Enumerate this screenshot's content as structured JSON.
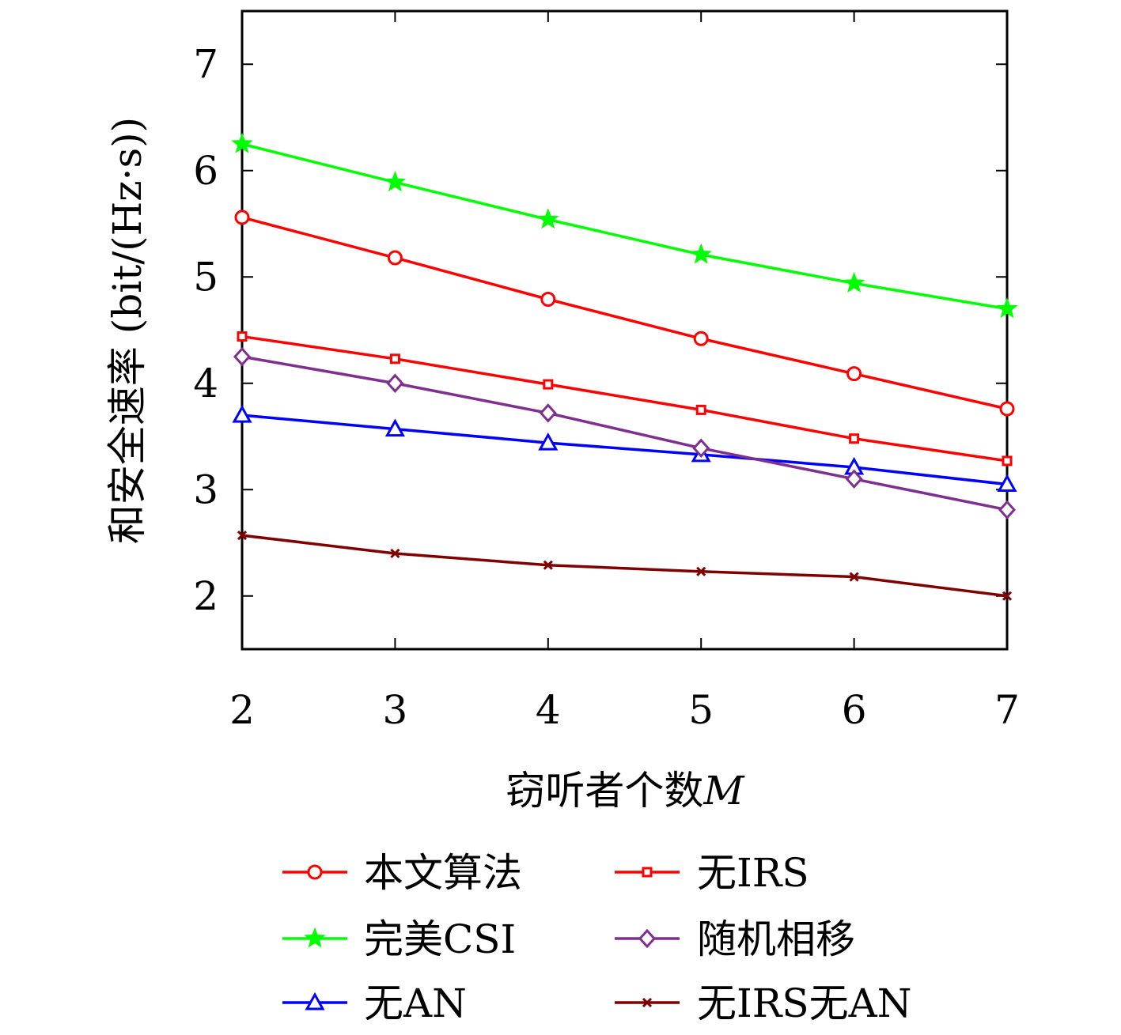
{
  "chart_data": {
    "type": "line",
    "xlabel": "窃听者个数",
    "xlabel_var": "M",
    "ylabel": "和安全速率 (bit/(Hz·s))",
    "x": [
      2,
      3,
      4,
      5,
      6,
      7
    ],
    "xlim": [
      2,
      7
    ],
    "ylim": [
      1.5,
      7.5
    ],
    "xticks": [
      "2",
      "3",
      "4",
      "5",
      "6",
      "7"
    ],
    "yticks": [
      "2",
      "3",
      "4",
      "5",
      "6",
      "7"
    ],
    "grid": false,
    "legend_position": "bottom",
    "series": [
      {
        "name": "本文算法",
        "color": "#ff0000",
        "marker": "circle",
        "values": [
          5.56,
          5.18,
          4.79,
          4.42,
          4.09,
          3.76
        ]
      },
      {
        "name": "完美CSI",
        "color": "#00ff00",
        "marker": "star",
        "values": [
          6.25,
          5.89,
          5.54,
          5.21,
          4.94,
          4.7
        ]
      },
      {
        "name": "无AN",
        "color": "#0000ff",
        "marker": "triangle",
        "values": [
          3.7,
          3.57,
          3.44,
          3.33,
          3.21,
          3.05
        ]
      },
      {
        "name": "无IRS",
        "color": "#ff0000",
        "marker": "square",
        "values": [
          4.44,
          4.23,
          3.99,
          3.75,
          3.48,
          3.27
        ]
      },
      {
        "name": "随机相移",
        "color": "#7f2f8f",
        "marker": "diamond",
        "values": [
          4.25,
          4.0,
          3.72,
          3.39,
          3.1,
          2.81
        ]
      },
      {
        "name": "无IRS无AN",
        "color": "#800000",
        "marker": "x",
        "values": [
          2.57,
          2.4,
          2.29,
          2.23,
          2.18,
          2.0
        ]
      }
    ]
  }
}
